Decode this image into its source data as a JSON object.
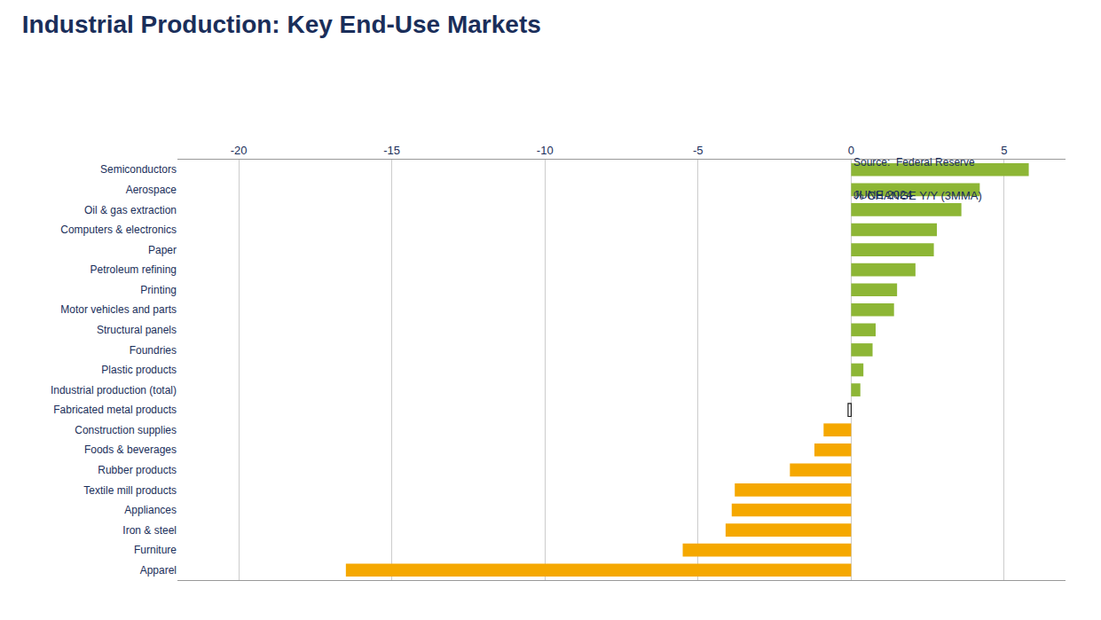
{
  "chart_data": {
    "type": "bar",
    "orientation": "horizontal",
    "title": "Industrial Production: Key End-Use Markets",
    "subtitle": [
      "% CHANGE Y/Y (3MMA)",
      "JUNE 2024"
    ],
    "annotations": [
      "Source:  Federal Reserve"
    ],
    "categories": [
      "Semiconductors",
      "Aerospace",
      "Oil & gas extraction",
      "Computers & electronics",
      "Paper",
      "Petroleum refining",
      "Printing",
      "Motor vehicles and parts",
      "Structural panels",
      "Foundries",
      "Plastic products",
      "Industrial production (total)",
      "Fabricated metal products",
      "Construction supplies",
      "Foods & beverages",
      "Rubber products",
      "Textile mill products",
      "Appliances",
      "Iron & steel",
      "Furniture",
      "Apparel"
    ],
    "values": [
      5.8,
      4.2,
      3.6,
      2.8,
      2.7,
      2.1,
      1.5,
      1.4,
      0.8,
      0.7,
      0.4,
      0.3,
      -0.1,
      -0.9,
      -1.2,
      -2.0,
      -3.8,
      -3.9,
      -4.1,
      -5.5,
      -16.5
    ],
    "colors": [
      "#8db635",
      "#8db635",
      "#8db635",
      "#8db635",
      "#8db635",
      "#8db635",
      "#8db635",
      "#8db635",
      "#8db635",
      "#8db635",
      "#8db635",
      "#8db635",
      "#ffffff",
      "#f5a800",
      "#f5a800",
      "#f5a800",
      "#f5a800",
      "#f5a800",
      "#f5a800",
      "#f5a800",
      "#f5a800"
    ],
    "xlim": [
      -22,
      7
    ],
    "xticks": [
      -20,
      -15,
      -10,
      -5,
      0,
      5
    ],
    "grid": true
  }
}
